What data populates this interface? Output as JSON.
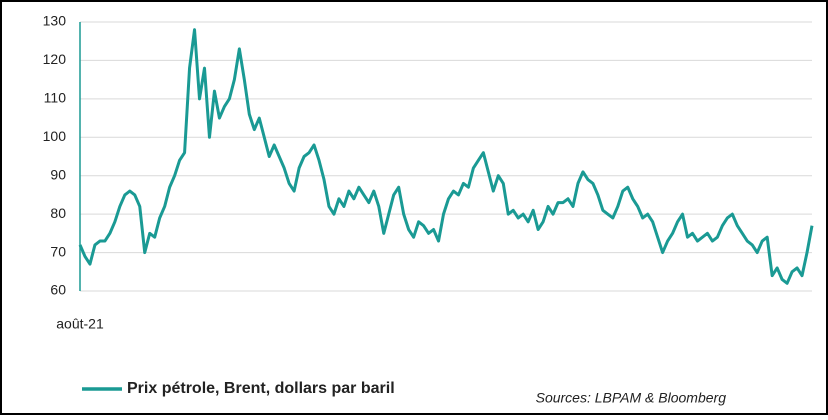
{
  "chart_data": {
    "type": "line",
    "categories": [
      "août-21",
      null,
      null,
      null,
      null,
      null,
      null,
      null,
      null,
      null,
      null,
      null,
      null,
      null,
      null,
      null,
      null,
      null,
      null,
      null,
      null,
      null,
      null,
      null,
      null,
      null,
      null,
      null,
      null,
      null,
      null,
      null,
      null,
      null,
      null,
      null,
      null,
      null,
      null,
      null,
      null,
      null,
      null,
      null,
      null,
      null,
      null,
      null,
      null,
      null,
      null,
      null,
      null,
      null,
      null,
      null,
      null,
      null,
      null,
      null,
      null,
      null,
      null,
      null,
      null,
      null,
      null,
      null,
      null,
      null,
      null,
      null,
      null,
      null,
      null,
      null,
      null,
      null,
      null,
      null,
      null,
      null,
      null,
      null,
      null,
      null,
      null,
      null,
      null,
      null,
      null,
      null,
      null,
      null,
      null,
      null,
      null,
      null,
      null,
      null,
      null,
      null,
      null,
      null,
      null,
      null,
      null,
      null,
      null,
      null,
      null,
      null,
      null,
      null,
      null,
      null,
      null,
      null,
      null,
      null,
      null,
      null,
      null,
      null,
      null,
      null,
      null,
      null,
      null,
      null,
      null,
      null,
      null,
      null,
      null,
      null,
      null,
      null,
      null,
      null,
      null,
      null,
      null,
      null,
      null,
      null,
      null,
      null
    ],
    "series": [
      {
        "name": "Prix pétrole, Brent, dollars par baril",
        "color": "#1a9a94",
        "values": [
          72,
          69,
          67,
          72,
          73,
          73,
          75,
          78,
          82,
          85,
          86,
          85,
          82,
          70,
          75,
          74,
          79,
          82,
          87,
          90,
          94,
          96,
          118,
          128,
          110,
          118,
          100,
          112,
          105,
          108,
          110,
          115,
          123,
          115,
          106,
          102,
          105,
          100,
          95,
          98,
          95,
          92,
          88,
          86,
          92,
          95,
          96,
          98,
          94,
          89,
          82,
          80,
          84,
          82,
          86,
          84,
          87,
          85,
          83,
          86,
          82,
          75,
          80,
          85,
          87,
          80,
          76,
          74,
          78,
          77,
          75,
          76,
          73,
          80,
          84,
          86,
          85,
          88,
          87,
          92,
          94,
          96,
          91,
          86,
          90,
          88,
          80,
          81,
          79,
          80,
          78,
          81,
          76,
          78,
          82,
          80,
          83,
          83,
          84,
          82,
          88,
          91,
          89,
          88,
          85,
          81,
          80,
          79,
          82,
          86,
          87,
          84,
          82,
          79,
          80,
          78,
          74,
          70,
          73,
          75,
          78,
          80,
          74,
          75,
          73,
          74,
          75,
          73,
          74,
          77,
          79,
          80,
          77,
          75,
          73,
          72,
          70,
          73,
          74,
          64,
          66,
          63,
          62,
          65,
          66,
          64,
          70,
          77
        ]
      }
    ],
    "ylim": [
      60,
      130
    ],
    "yticks": [
      60,
      70,
      80,
      90,
      100,
      110,
      120,
      130
    ],
    "grid": true,
    "source": "Sources: LBPAM & Bloomberg"
  }
}
